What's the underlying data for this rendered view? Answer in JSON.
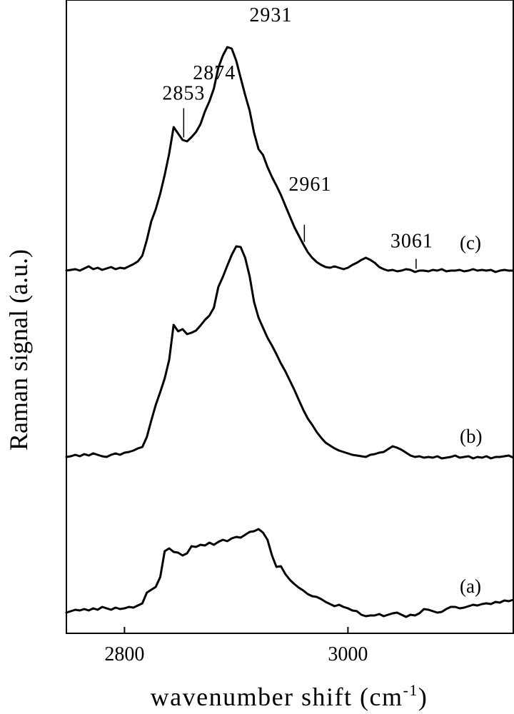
{
  "chart_data": {
    "type": "line",
    "xlabel_main": "wavenumber shift (cm",
    "xlabel_sup": "-1",
    "xlabel_close": ")",
    "ylabel": "Raman signal (a.u.)",
    "xlim": [
      2748,
      3148
    ],
    "xticks": [
      2800,
      3000
    ],
    "y_ticks_shown": false,
    "grid": false,
    "x_step": 4,
    "series": [
      {
        "name": "(a)",
        "offset": 0,
        "values": [
          0.0,
          0.2,
          0.4,
          0.3,
          0.5,
          0.3,
          0.6,
          0.4,
          0.8,
          0.6,
          0.4,
          0.7,
          0.5,
          0.6,
          0.8,
          0.7,
          1.0,
          1.3,
          2.8,
          3.2,
          3.6,
          5.0,
          8.6,
          9.0,
          8.5,
          8.4,
          8.0,
          8.3,
          9.3,
          9.2,
          9.5,
          9.4,
          9.8,
          9.5,
          9.9,
          10.2,
          10.0,
          10.4,
          10.6,
          10.5,
          10.9,
          11.3,
          11.4,
          11.7,
          11.2,
          10.2,
          8.0,
          6.4,
          6.5,
          5.4,
          4.6,
          4.0,
          3.5,
          3.1,
          2.6,
          2.3,
          2.2,
          1.9,
          1.5,
          1.2,
          0.9,
          1.1,
          0.8,
          0.6,
          0.3,
          0.2,
          -0.3,
          -0.5,
          -0.4,
          -0.4,
          -0.2,
          -0.5,
          -0.3,
          -0.1,
          0.0,
          -0.3,
          -0.6,
          -0.3,
          -0.4,
          -0.1,
          0.5,
          0.4,
          0.2,
          0.0,
          0.1,
          0.5,
          0.8,
          0.8,
          0.6,
          0.7,
          0.9,
          1.1,
          1.0,
          1.2,
          1.3,
          1.2,
          1.5,
          1.4,
          1.7,
          1.6,
          1.8
        ]
      },
      {
        "name": "(b)",
        "offset": 1,
        "values": [
          0.0,
          0.1,
          0.3,
          0.1,
          0.4,
          0.2,
          0.5,
          0.3,
          0.1,
          0.0,
          0.3,
          0.5,
          0.3,
          0.6,
          0.7,
          0.9,
          1.2,
          1.4,
          2.8,
          5.1,
          7.3,
          9.1,
          11.0,
          13.6,
          18.5,
          17.6,
          17.9,
          17.2,
          17.4,
          17.7,
          18.4,
          19.2,
          19.8,
          20.9,
          23.8,
          25.2,
          26.8,
          28.3,
          29.5,
          29.4,
          27.9,
          25.3,
          21.7,
          19.5,
          18.1,
          16.7,
          15.6,
          14.4,
          13.1,
          12.0,
          10.7,
          9.4,
          8.0,
          6.6,
          5.4,
          4.5,
          3.5,
          2.7,
          2.0,
          1.6,
          1.2,
          0.9,
          0.7,
          0.5,
          0.3,
          0.2,
          0.1,
          0.0,
          0.3,
          0.4,
          0.6,
          0.7,
          1.1,
          1.5,
          1.3,
          1.0,
          0.6,
          0.2,
          0.0,
          0.1,
          -0.1,
          0.0,
          -0.1,
          0.1,
          -0.2,
          -0.1,
          0.0,
          0.2,
          -0.1,
          0.0,
          0.1,
          -0.2,
          0.0,
          -0.1,
          0.1,
          -0.2,
          0.0,
          0.0,
          0.1,
          0.2,
          -0.1
        ]
      },
      {
        "name": "(c)",
        "offset": 2,
        "values": [
          0.0,
          0.1,
          0.2,
          0.0,
          0.3,
          0.6,
          0.2,
          0.4,
          0.1,
          0.3,
          0.5,
          0.2,
          0.4,
          0.3,
          0.6,
          0.9,
          1.3,
          2.1,
          4.3,
          6.9,
          8.6,
          10.8,
          13.4,
          16.4,
          20.1,
          19.2,
          18.3,
          18.1,
          18.7,
          19.4,
          20.5,
          22.3,
          23.7,
          25.5,
          28.4,
          30.1,
          31.3,
          31.1,
          29.4,
          27.0,
          24.6,
          22.4,
          19.3,
          17.0,
          16.2,
          14.5,
          13.1,
          11.9,
          10.6,
          9.1,
          7.6,
          6.1,
          4.9,
          3.7,
          2.6,
          1.8,
          1.2,
          0.8,
          0.5,
          0.4,
          0.6,
          0.4,
          0.2,
          0.4,
          0.8,
          1.1,
          1.5,
          1.8,
          1.5,
          1.1,
          0.5,
          0.2,
          0.0,
          0.1,
          -0.1,
          0.0,
          0.2,
          0.1,
          -0.2,
          0.0,
          0.0,
          -0.1,
          0.1,
          0.0,
          0.2,
          -0.1,
          0.0,
          0.0,
          0.1,
          -0.1,
          0.0,
          0.2,
          0.0,
          0.1,
          0.0,
          0.1,
          -0.2,
          0.0,
          0.1,
          0.0,
          0.0
        ]
      }
    ],
    "annotations": [
      {
        "text": "2853",
        "x": 2853,
        "series": 2
      },
      {
        "text": "2874",
        "x": 2874,
        "series": 2
      },
      {
        "text": "2931",
        "x": 2931,
        "series": 2
      },
      {
        "text": "2961",
        "x": 2961,
        "series": 2
      },
      {
        "text": "3061",
        "x": 3061,
        "series": 2
      }
    ]
  }
}
